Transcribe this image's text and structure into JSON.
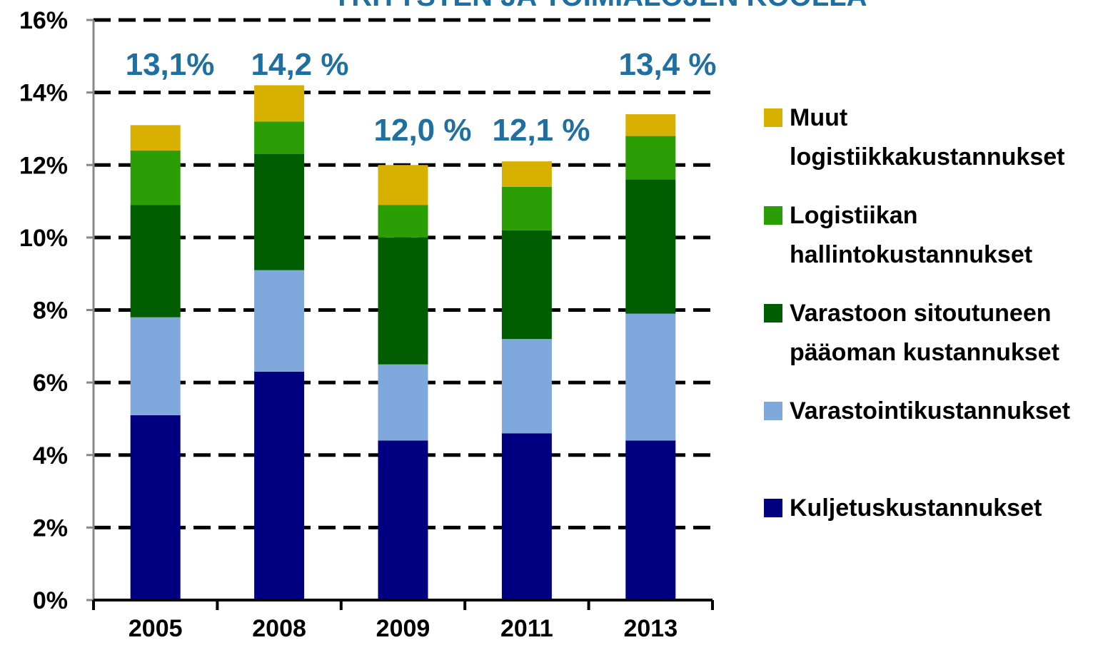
{
  "chart_data": {
    "type": "stacked_bar",
    "title": "YRITYSTEN JA TOIMIALOJEN KOOLLA",
    "categories": [
      "2005",
      "2008",
      "2009",
      "2011",
      "2013"
    ],
    "series": [
      {
        "name": "Kuljetuskustannukset",
        "color": "#000080",
        "values": [
          5.1,
          6.3,
          4.4,
          4.6,
          4.4
        ]
      },
      {
        "name": "Varastointikustannukset",
        "color": "#7fa8dd",
        "values": [
          2.7,
          2.8,
          2.1,
          2.6,
          3.5
        ]
      },
      {
        "name": "Varastoon sitoutuneen pääoman kustannukset",
        "color": "#005e00",
        "values": [
          3.1,
          3.2,
          3.5,
          3.0,
          3.7
        ]
      },
      {
        "name": "Logistiikan hallintokustannukset",
        "color": "#2a9e04",
        "values": [
          1.5,
          0.9,
          0.9,
          1.2,
          1.2
        ]
      },
      {
        "name": "Muut logistiikkakustannukset",
        "color": "#d8b000",
        "values": [
          0.7,
          1.0,
          1.1,
          0.7,
          0.6
        ]
      }
    ],
    "annotations": [
      "13,1%",
      "14,2 %",
      "12,0 %",
      "12,1 %",
      "13,4 %"
    ],
    "ylim": [
      0,
      16
    ],
    "yticks": [
      {
        "value": 0,
        "label": "0%"
      },
      {
        "value": 2,
        "label": "2%"
      },
      {
        "value": 4,
        "label": "4%"
      },
      {
        "value": 6,
        "label": "6%"
      },
      {
        "value": 8,
        "label": "8%"
      },
      {
        "value": 10,
        "label": "10%"
      },
      {
        "value": 12,
        "label": "12%"
      },
      {
        "value": 14,
        "label": "14%"
      },
      {
        "value": 16,
        "label": "16%"
      }
    ],
    "grid": true
  }
}
